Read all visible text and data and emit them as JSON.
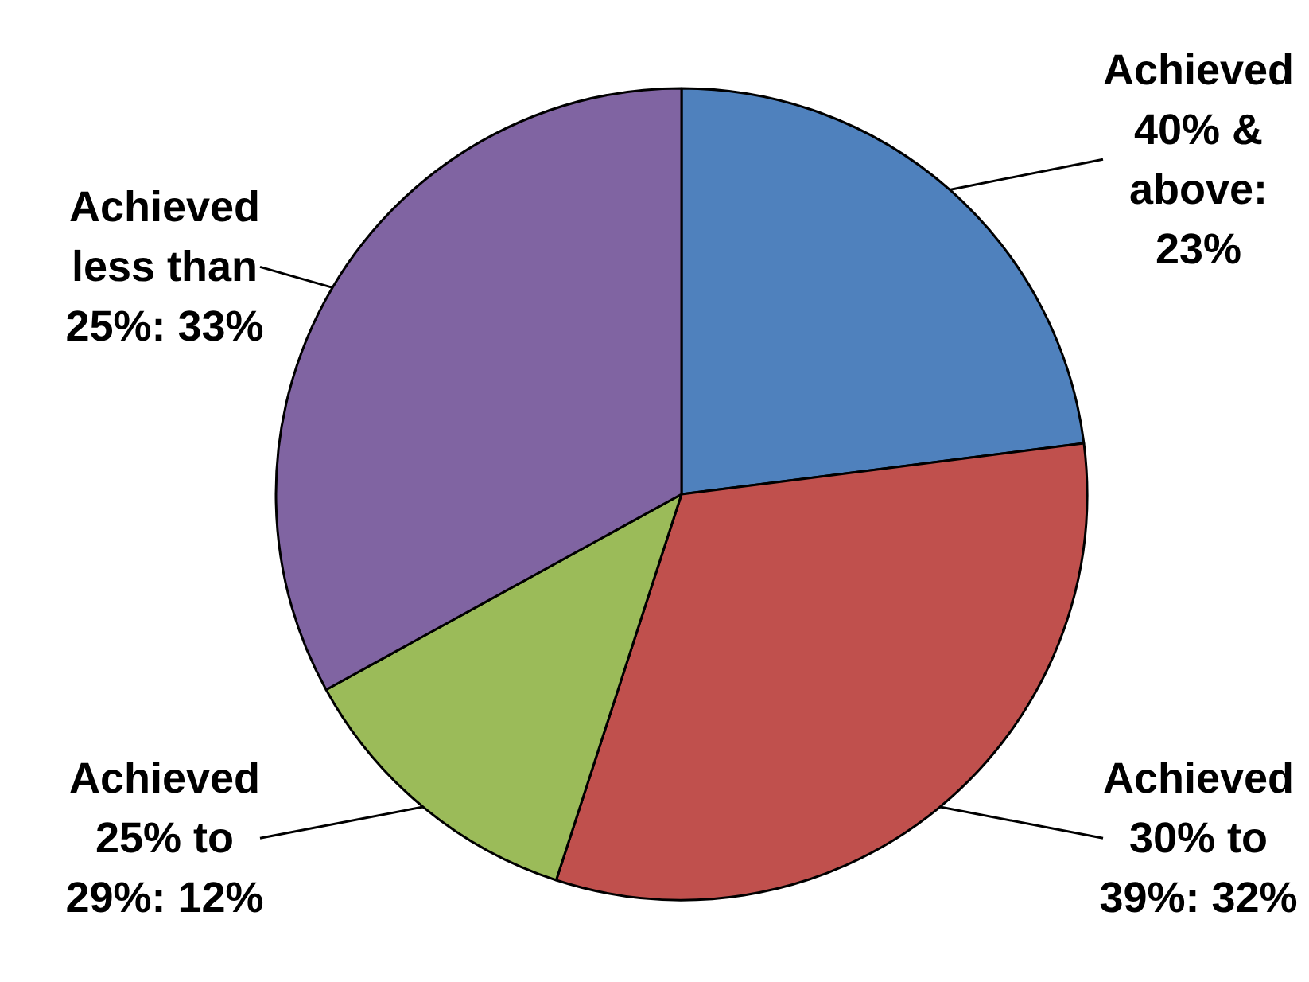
{
  "chart_data": {
    "type": "pie",
    "categories": [
      "Achieved 40% & above: 23%",
      "Achieved 30% to 39%: 32%",
      "Achieved 25% to 29%: 12%",
      "Achieved less than 25%: 33%"
    ],
    "values": [
      23,
      32,
      12,
      33
    ],
    "colors": [
      "#4f81bd",
      "#c0504d",
      "#9bbb59",
      "#8064a2"
    ],
    "legend": false
  }
}
